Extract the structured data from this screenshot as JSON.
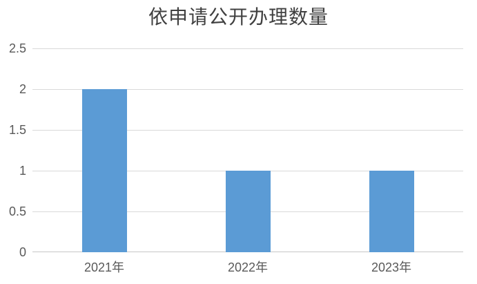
{
  "chart_data": {
    "type": "bar",
    "title": "依申请公开办理数量",
    "categories": [
      "2021年",
      "2022年",
      "2023年"
    ],
    "values": [
      2,
      1,
      1
    ],
    "xlabel": "",
    "ylabel": "",
    "ylim": [
      0,
      2.5
    ],
    "yticks": [
      0,
      0.5,
      1,
      1.5,
      2,
      2.5
    ],
    "ytick_labels": [
      "0",
      "0.5",
      "1",
      "1.5",
      "2",
      "2.5"
    ],
    "grid": true,
    "legend": false,
    "colors": {
      "bar": "#5B9BD5",
      "gridline": "#D9D9D9",
      "axis_line": "#C6C6C6",
      "tick_label": "#595959",
      "title": "#404040"
    }
  }
}
